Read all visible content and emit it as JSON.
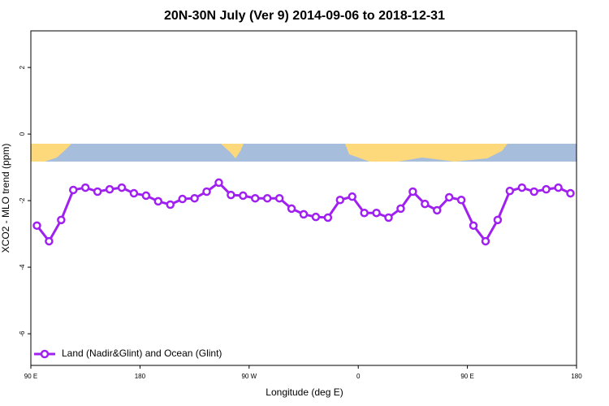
{
  "chart_data": {
    "type": "line",
    "title": "20N-30N July (Ver 9)   2014-09-06 to 2018-12-31",
    "x_label": "Longitude (deg E)",
    "y_label": "XCO2 - MLO trend (ppm)",
    "x": [
      95,
      105,
      115,
      125,
      135,
      145,
      155,
      165,
      175,
      185,
      195,
      205,
      215,
      225,
      235,
      245,
      255,
      265,
      275,
      285,
      295,
      305,
      315,
      325,
      335,
      345,
      355,
      365,
      375,
      385,
      395,
      405,
      415,
      425,
      435,
      445,
      455,
      465,
      475,
      485,
      495,
      505,
      515,
      525,
      535
    ],
    "series": [
      {
        "name": "Land (Nadir&Glint) and Ocean (Glint)",
        "color": "#a020f0",
        "values": [
          -2.75,
          -3.22,
          -2.58,
          -1.68,
          -1.61,
          -1.73,
          -1.66,
          -1.61,
          -1.78,
          -1.85,
          -2.02,
          -2.12,
          -1.95,
          -1.93,
          -1.73,
          -1.46,
          -1.83,
          -1.85,
          -1.93,
          -1.93,
          -1.93,
          -2.24,
          -2.41,
          -2.49,
          -2.51,
          -1.98,
          -1.88,
          -2.37,
          -2.37,
          -2.51,
          -2.24,
          -1.73,
          -2.1,
          -2.29,
          -1.9,
          -1.98,
          -2.75,
          -3.22,
          -2.58,
          -1.71,
          -1.61,
          -1.73,
          -1.66,
          -1.61,
          -1.78
        ]
      }
    ],
    "xlim": [
      90,
      540
    ],
    "xticks": [
      {
        "value": 90,
        "label": "90 E"
      },
      180,
      {
        "value": 270,
        "label": "90 W"
      },
      {
        "value": 360,
        "label": "0"
      },
      {
        "value": 450,
        "label": "90 E"
      },
      {
        "value": 540,
        "label": "180"
      }
    ],
    "ylim": [
      -6.95,
      3.1
    ],
    "yticks": [
      -6,
      -4,
      -2,
      0,
      2
    ],
    "legend": "bottom-left"
  }
}
